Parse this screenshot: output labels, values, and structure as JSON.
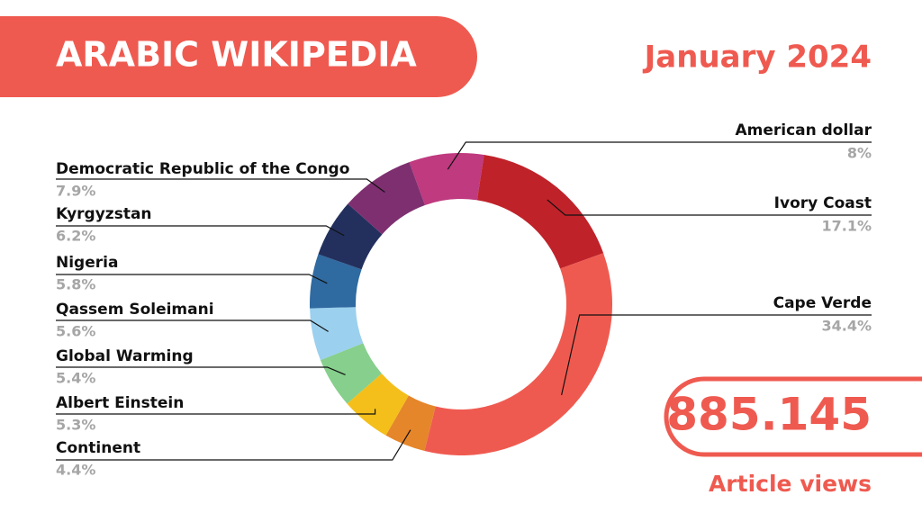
{
  "chart_data": {
    "type": "pie",
    "title": "ARABIC WIKIPEDIA",
    "subtitle": "January 2024",
    "categories": [
      "American dollar",
      "Ivory Coast",
      "Cape Verde",
      "Continent",
      "Albert Einstein",
      "Global Warming",
      "Qassem Soleimani",
      "Nigeria",
      "Kyrgyzstan",
      "Democratic Republic of the Congo"
    ],
    "values": [
      8,
      17.1,
      34.4,
      4.4,
      5.3,
      5.4,
      5.6,
      5.8,
      6.2,
      7.9
    ],
    "value_labels": [
      "8%",
      "17.1%",
      "34.4%",
      "4.4%",
      "5.3%",
      "5.4%",
      "5.6%",
      "5.8%",
      "6.2%",
      "7.9%"
    ],
    "colors": [
      "#bf3a7f",
      "#c0222a",
      "#ef5a50",
      "#e5862a",
      "#f4bf1a",
      "#86cf8c",
      "#9bd0ee",
      "#2f6aa1",
      "#23305e",
      "#7e2f70"
    ],
    "donut": true,
    "annotations": [
      "885.145",
      "Article views"
    ]
  }
}
